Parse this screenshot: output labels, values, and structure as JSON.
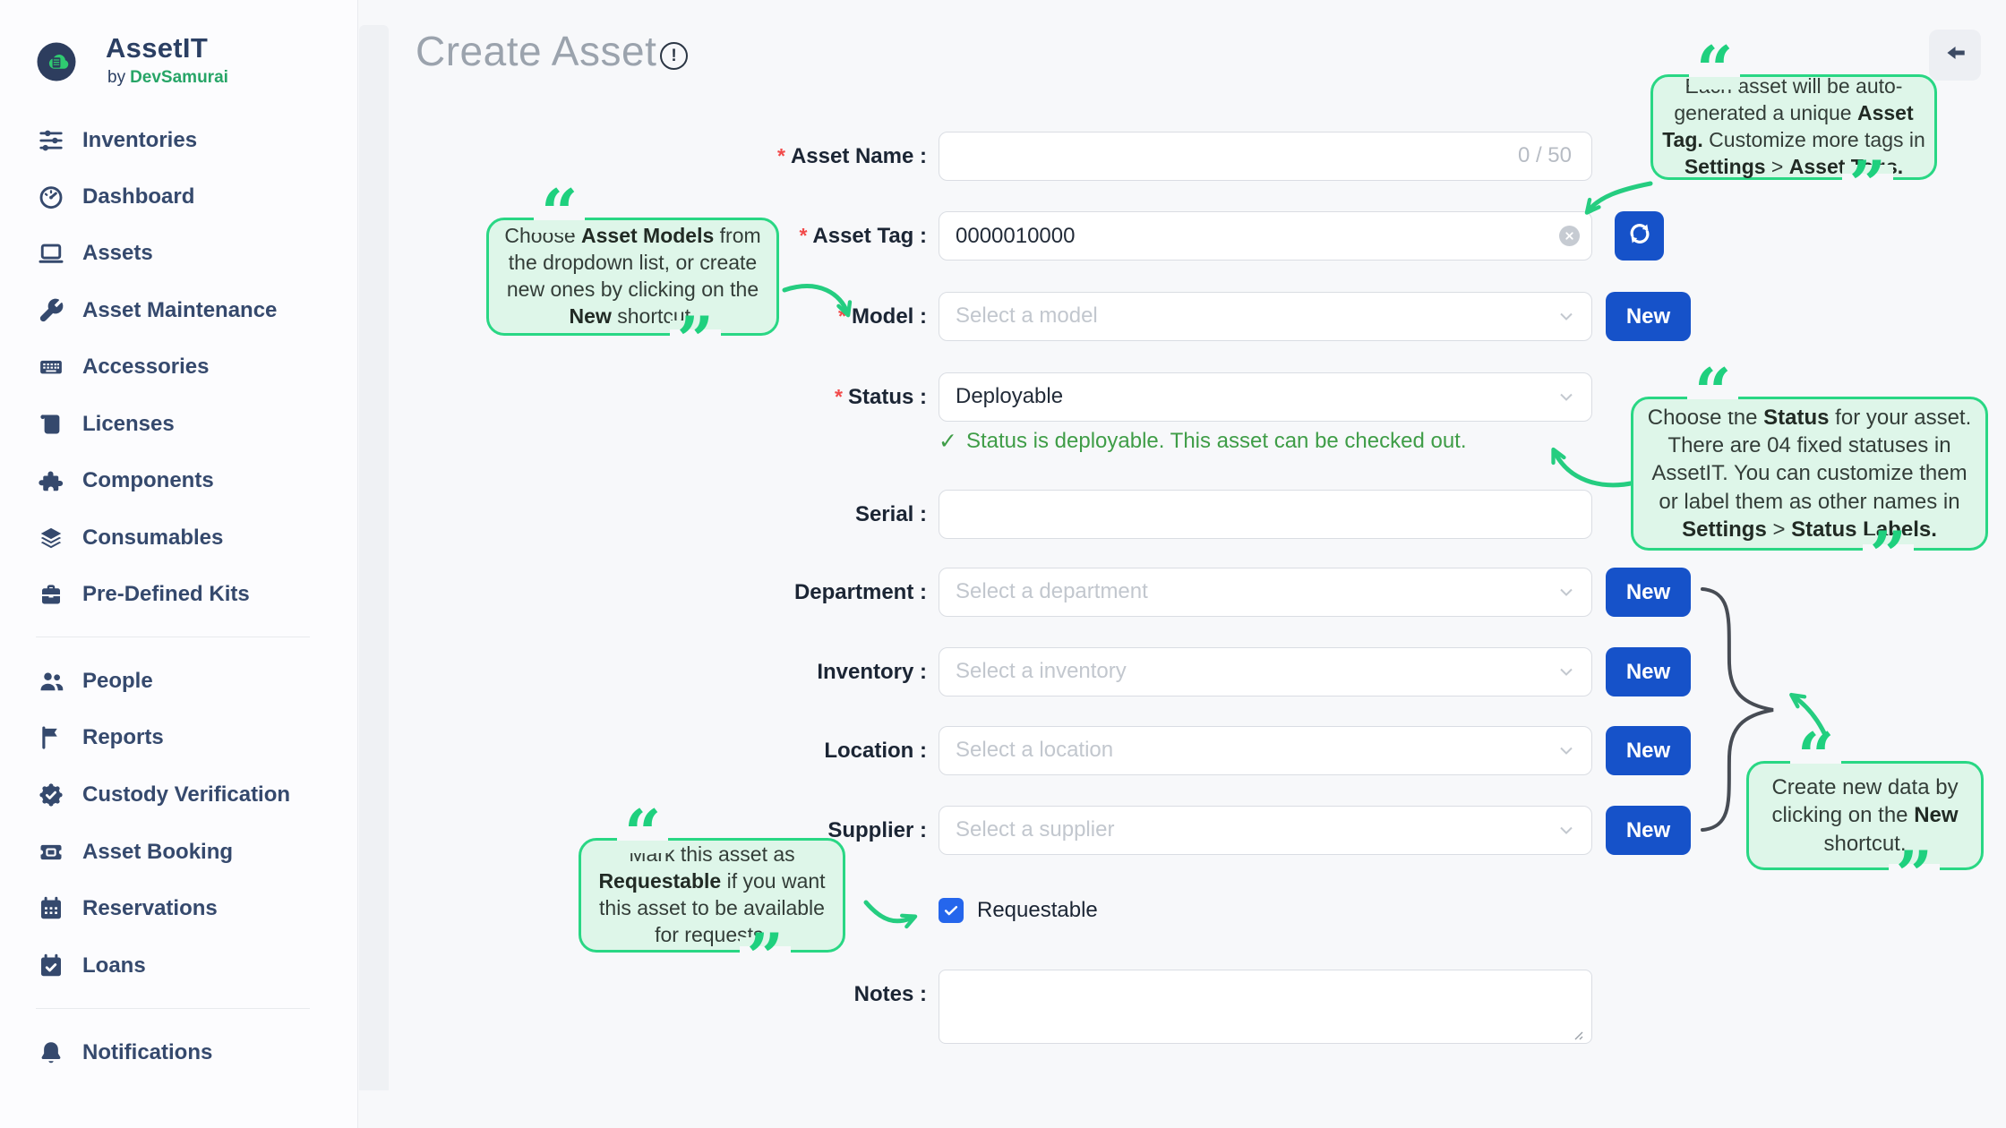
{
  "brand": {
    "name": "AssetIT",
    "by": "by",
    "company": "DevSamurai"
  },
  "sidebar": {
    "items": [
      {
        "label": "Inventories",
        "icon": "sliders-icon"
      },
      {
        "label": "Dashboard",
        "icon": "gauge-icon"
      },
      {
        "label": "Assets",
        "icon": "laptop-icon"
      },
      {
        "label": "Asset Maintenance",
        "icon": "wrench-icon"
      },
      {
        "label": "Accessories",
        "icon": "keyboard-icon"
      },
      {
        "label": "Licenses",
        "icon": "scroll-icon"
      },
      {
        "label": "Components",
        "icon": "puzzle-icon"
      },
      {
        "label": "Consumables",
        "icon": "layers-icon"
      },
      {
        "label": "Pre-Defined Kits",
        "icon": "toolbox-icon"
      },
      {
        "label": "People",
        "icon": "people-icon"
      },
      {
        "label": "Reports",
        "icon": "flag-icon"
      },
      {
        "label": "Custody Verification",
        "icon": "badge-check-icon"
      },
      {
        "label": "Asset Booking",
        "icon": "ticket-icon"
      },
      {
        "label": "Reservations",
        "icon": "calendar-icon"
      },
      {
        "label": "Loans",
        "icon": "calendar-check-icon"
      },
      {
        "label": "Notifications",
        "icon": "bell-icon"
      }
    ]
  },
  "header": {
    "title": "Create Asset"
  },
  "form": {
    "required_mark": "*",
    "asset_name": {
      "label": "Asset Name :",
      "value": "",
      "counter": "0 / 50"
    },
    "asset_tag": {
      "label": "Asset Tag :",
      "value": "0000010000"
    },
    "model": {
      "label": "Model :",
      "placeholder": "Select a model",
      "new_label": "New"
    },
    "status": {
      "label": "Status :",
      "value": "Deployable",
      "message": "Status is deployable. This asset can be checked out."
    },
    "serial": {
      "label": "Serial :",
      "value": ""
    },
    "department": {
      "label": "Department :",
      "placeholder": "Select a department",
      "new_label": "New"
    },
    "inventory": {
      "label": "Inventory :",
      "placeholder": "Select a inventory",
      "new_label": "New"
    },
    "location": {
      "label": "Location :",
      "placeholder": "Select a location",
      "new_label": "New"
    },
    "supplier": {
      "label": "Supplier :",
      "placeholder": "Select a supplier",
      "new_label": "New"
    },
    "requestable": {
      "label": "Requestable",
      "checked": true
    },
    "notes": {
      "label": "Notes :",
      "value": ""
    }
  },
  "callouts": {
    "asset_tag": {
      "segments": [
        {
          "t": "Each asset will be auto-generated a unique "
        },
        {
          "t": "Asset Tag.",
          "b": 1
        },
        {
          "t": " Customize more tags in "
        },
        {
          "t": "Settings",
          "b": 1
        },
        {
          "t": " > "
        },
        {
          "t": "Asset Tags.",
          "b": 1
        }
      ]
    },
    "model": {
      "segments": [
        {
          "t": "Choose "
        },
        {
          "t": "Asset Models",
          "b": 1
        },
        {
          "t": " from the dropdown list, or create new ones by clicking on the "
        },
        {
          "t": "New",
          "b": 1
        },
        {
          "t": " shortcut."
        }
      ]
    },
    "status": {
      "segments": [
        {
          "t": "Choose the "
        },
        {
          "t": "Status",
          "b": 1
        },
        {
          "t": " for your asset. There are 04 fixed statuses in AssetIT. You can customize them or label them as other names in "
        },
        {
          "t": "Settings",
          "b": 1
        },
        {
          "t": " > "
        },
        {
          "t": "Status Labels.",
          "b": 1
        }
      ]
    },
    "requestable": {
      "segments": [
        {
          "t": "Mark this asset as "
        },
        {
          "t": "Requestable",
          "b": 1
        },
        {
          "t": " if you want this asset to be available for requests."
        }
      ]
    },
    "new_shortcut": {
      "segments": [
        {
          "t": "Create new data by clicking on the "
        },
        {
          "t": "New",
          "b": 1
        },
        {
          "t": " shortcut."
        }
      ]
    }
  },
  "decor": {
    "quote_open": "“",
    "quote_close": "”",
    "info_glyph": "!",
    "check_glyph": "✓"
  },
  "colors": {
    "accent_green": "#29d784",
    "brand_green": "#27a567",
    "primary_blue": "#1652c9",
    "navy": "#35496d",
    "status_green": "#3f9d47",
    "required_red": "#f24a4a",
    "callout_bg": "#def6e9",
    "page_bg": "#f7f8fa"
  }
}
